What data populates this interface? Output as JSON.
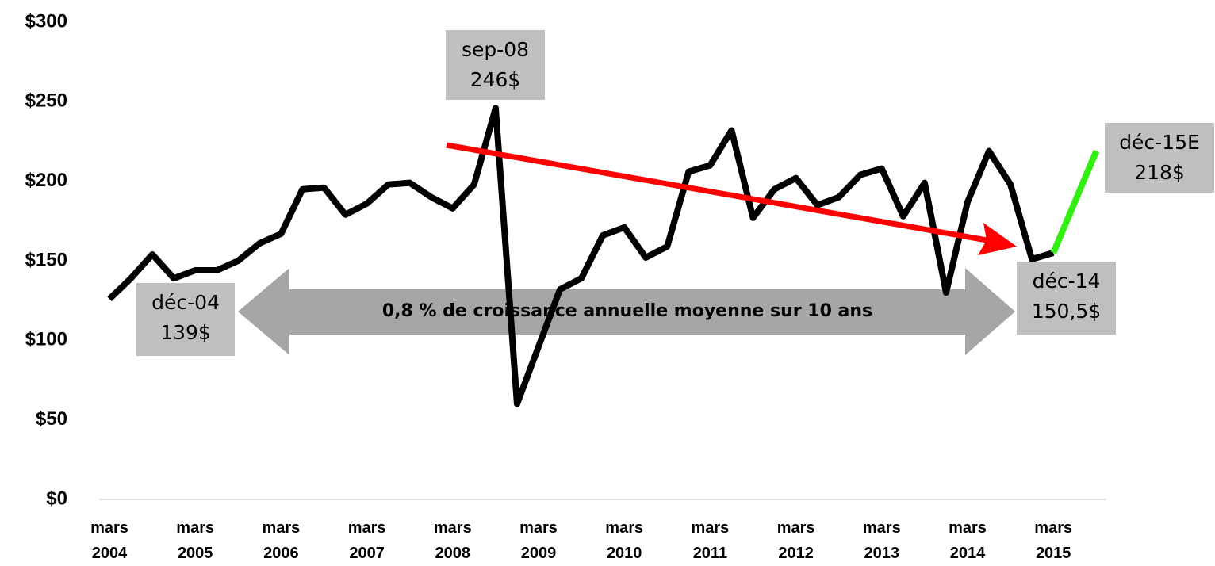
{
  "chart_data": {
    "type": "line",
    "categories": [
      "mars 2004",
      null,
      null,
      null,
      "mars 2005",
      null,
      null,
      null,
      "mars 2006",
      null,
      null,
      null,
      "mars 2007",
      null,
      null,
      null,
      "mars 2008",
      null,
      null,
      null,
      "mars 2009",
      null,
      null,
      null,
      "mars 2010",
      null,
      null,
      null,
      "mars 2011",
      null,
      null,
      null,
      "mars 2012",
      null,
      null,
      null,
      "mars 2013",
      null,
      null,
      null,
      "mars 2014",
      null,
      null,
      null,
      "mars 2015",
      null,
      null
    ],
    "series": [
      {
        "color": "#000000",
        "values": [
          126,
          139,
          154,
          139,
          144,
          144,
          150,
          161,
          167,
          195,
          196,
          179,
          186,
          198,
          199,
          190,
          183,
          198,
          246,
          60,
          96,
          132,
          139,
          166,
          171,
          152,
          159,
          206,
          210,
          232,
          177,
          195,
          202,
          185,
          190,
          204,
          208,
          178,
          199,
          130,
          187,
          219,
          198,
          151,
          155,
          null,
          null
        ]
      },
      {
        "color": "#33ee11",
        "values": [
          null,
          null,
          null,
          null,
          null,
          null,
          null,
          null,
          null,
          null,
          null,
          null,
          null,
          null,
          null,
          null,
          null,
          null,
          null,
          null,
          null,
          null,
          null,
          null,
          null,
          null,
          null,
          null,
          null,
          null,
          null,
          null,
          null,
          null,
          null,
          null,
          null,
          null,
          null,
          null,
          null,
          null,
          null,
          null,
          155,
          187,
          219
        ]
      }
    ],
    "ylim": [
      0,
      300
    ],
    "yticks": [
      {
        "value": 0,
        "label": "$0"
      },
      {
        "value": 50,
        "label": "$50"
      },
      {
        "value": 100,
        "label": "$100"
      },
      {
        "value": 150,
        "label": "$150"
      },
      {
        "value": 200,
        "label": "$200"
      },
      {
        "value": 250,
        "label": "$250"
      },
      {
        "value": 300,
        "label": "$300"
      }
    ],
    "annotations": [
      {
        "lines": [
          "sep-08",
          "246$"
        ]
      },
      {
        "lines": [
          "déc-04",
          "139$"
        ]
      },
      {
        "lines": [
          "déc-14",
          "150,5$"
        ]
      },
      {
        "lines": [
          "déc-15E",
          "218$"
        ]
      }
    ],
    "arrow_label": "0,8 % de croissance annuelle moyenne sur 10 ans"
  }
}
